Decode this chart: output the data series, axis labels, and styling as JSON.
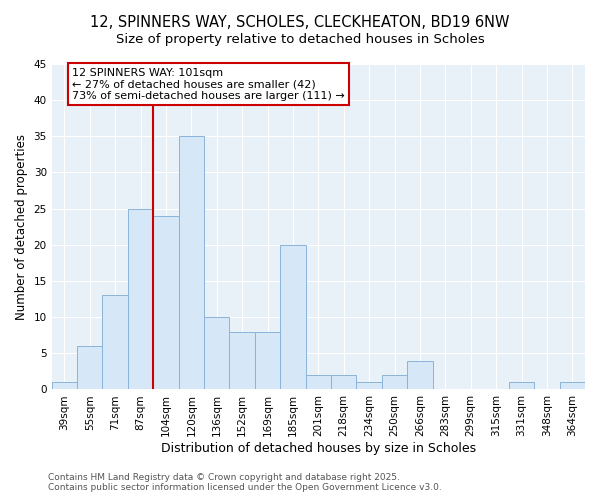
{
  "title": "12, SPINNERS WAY, SCHOLES, CLECKHEATON, BD19 6NW",
  "subtitle": "Size of property relative to detached houses in Scholes",
  "xlabel": "Distribution of detached houses by size in Scholes",
  "ylabel": "Number of detached properties",
  "categories": [
    "39sqm",
    "55sqm",
    "71sqm",
    "87sqm",
    "104sqm",
    "120sqm",
    "136sqm",
    "152sqm",
    "169sqm",
    "185sqm",
    "201sqm",
    "218sqm",
    "234sqm",
    "250sqm",
    "266sqm",
    "283sqm",
    "299sqm",
    "315sqm",
    "331sqm",
    "348sqm",
    "364sqm"
  ],
  "values": [
    1,
    6,
    13,
    25,
    24,
    35,
    10,
    8,
    8,
    20,
    2,
    2,
    1,
    2,
    4,
    0,
    0,
    0,
    1,
    0,
    1
  ],
  "bar_color": "#d6e8f7",
  "bar_edge_color": "#8ab4d8",
  "vline_color": "#cc0000",
  "vline_x_index": 4,
  "annotation_text": "12 SPINNERS WAY: 101sqm\n← 27% of detached houses are smaller (42)\n73% of semi-detached houses are larger (111) →",
  "annotation_box_color": "#cc0000",
  "ylim": [
    0,
    45
  ],
  "yticks": [
    0,
    5,
    10,
    15,
    20,
    25,
    30,
    35,
    40,
    45
  ],
  "bg_color": "#e8f0f8",
  "plot_bg_color": "#e8f0f8",
  "grid_color": "#ffffff",
  "footer_text": "Contains HM Land Registry data © Crown copyright and database right 2025.\nContains public sector information licensed under the Open Government Licence v3.0.",
  "title_fontsize": 10.5,
  "subtitle_fontsize": 9.5,
  "xlabel_fontsize": 9,
  "ylabel_fontsize": 8.5,
  "tick_fontsize": 7.5,
  "annotation_fontsize": 8,
  "footer_fontsize": 6.5
}
